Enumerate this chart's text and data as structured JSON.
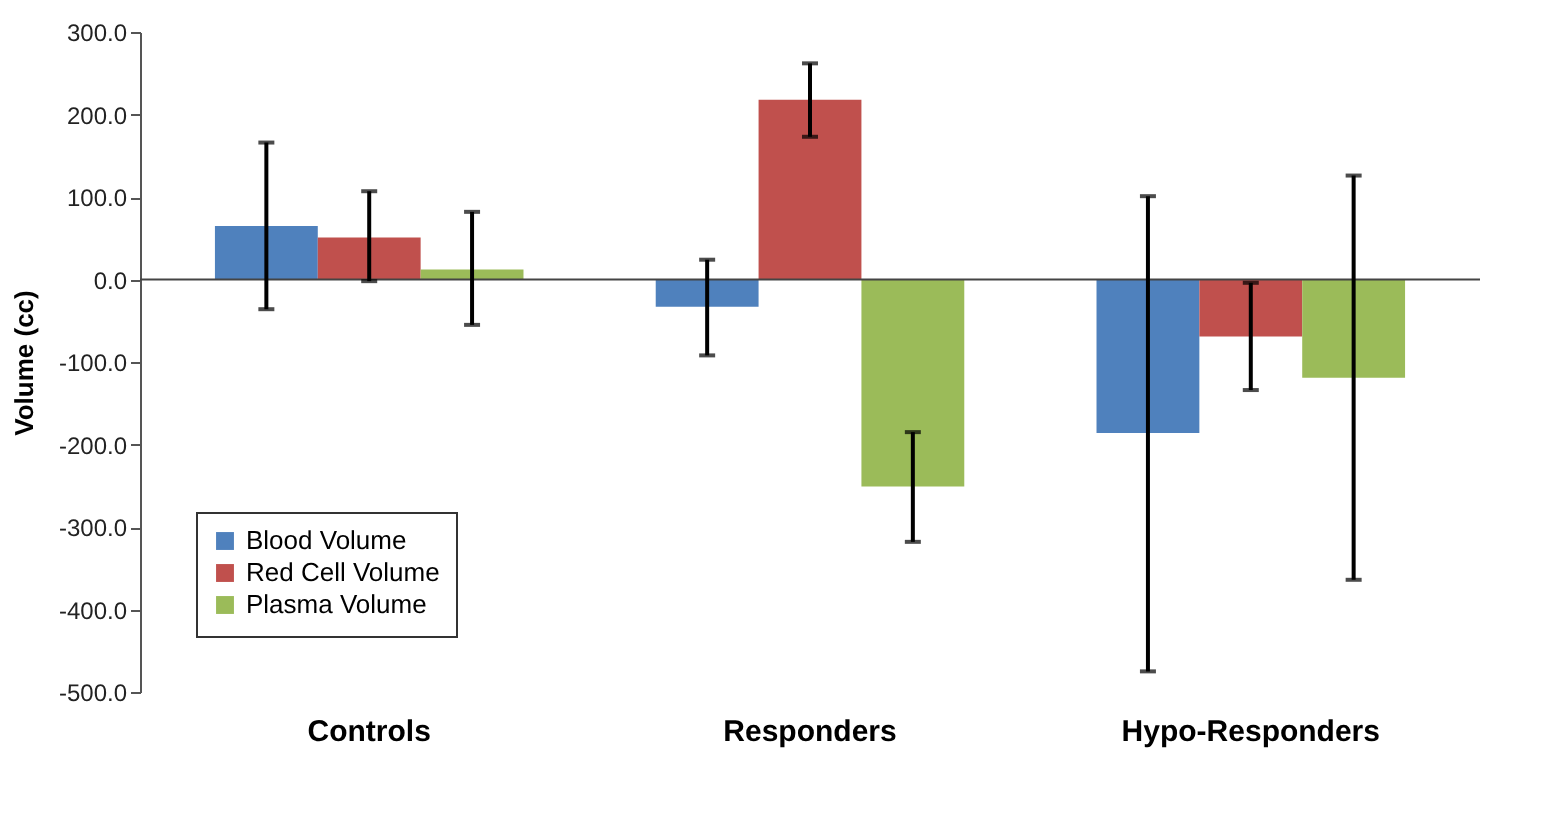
{
  "chart_data": {
    "type": "bar",
    "ylabel": "Volume (cc)",
    "categories": [
      "Controls",
      "Responders",
      "Hypo-Responders"
    ],
    "ylim": [
      -500,
      300
    ],
    "yticks": [
      {
        "value": -500,
        "label": "-500.0"
      },
      {
        "value": -400,
        "label": "-400.0"
      },
      {
        "value": -300,
        "label": "-300.0"
      },
      {
        "value": -200,
        "label": "-200.0"
      },
      {
        "value": -100,
        "label": "-100.0"
      },
      {
        "value": 0,
        "label": "0.0"
      },
      {
        "value": 100,
        "label": "100.0"
      },
      {
        "value": 200,
        "label": "200.0"
      },
      {
        "value": 300,
        "label": "300.0"
      }
    ],
    "grid": false,
    "legend": "bottom left",
    "ref_lines": [
      {
        "axis": "y",
        "value": 0,
        "color": "#444444"
      }
    ],
    "series": [
      {
        "name": "Blood Volume",
        "color": "#4f81bd",
        "values": [
          65,
          -33,
          -186
        ],
        "errors": [
          [
            -36,
            166
          ],
          [
            -92,
            24
          ],
          [
            -475,
            101
          ]
        ]
      },
      {
        "name": "Red Cell Volume",
        "color": "#c0504d",
        "values": [
          51,
          218,
          -69
        ],
        "errors": [
          [
            -2,
            107
          ],
          [
            173,
            262
          ],
          [
            -134,
            -4
          ]
        ]
      },
      {
        "name": "Plasma Volume",
        "color": "#9bbb59",
        "values": [
          12,
          -251,
          -119
        ],
        "errors": [
          [
            -55,
            82
          ],
          [
            -318,
            -185
          ],
          [
            -364,
            126
          ]
        ]
      }
    ]
  }
}
